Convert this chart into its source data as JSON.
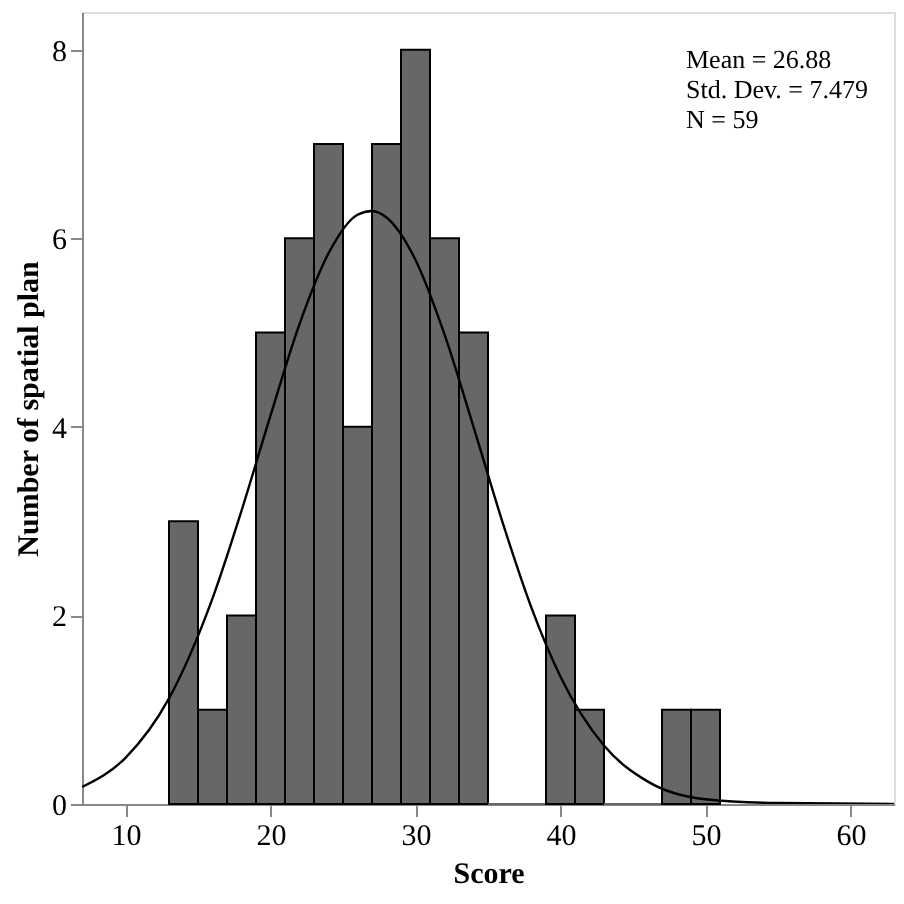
{
  "chart_data": {
    "type": "histogram",
    "xlabel": "Score",
    "ylabel": "Number of spatial plan",
    "bins": [
      13,
      15,
      17,
      19,
      21,
      23,
      25,
      27,
      29,
      31,
      33,
      35,
      37,
      39,
      41,
      43,
      45,
      47,
      49,
      51
    ],
    "values": [
      3,
      1,
      2,
      5,
      6,
      7,
      4,
      7,
      8,
      6,
      5,
      0,
      0,
      2,
      1,
      0,
      0,
      1,
      1
    ],
    "color": "#676767",
    "series": [
      {
        "type": "line",
        "color": "#000000",
        "x": [
          7,
          10,
          13,
          16,
          18,
          20,
          22,
          24,
          26,
          27,
          28,
          30,
          32,
          34,
          36,
          38,
          40,
          43,
          46,
          50,
          55,
          63
        ],
        "values": [
          0.18,
          0.49,
          1.12,
          2.18,
          3.11,
          4.12,
          5.09,
          5.84,
          6.25,
          6.29,
          6.22,
          5.77,
          4.98,
          4.0,
          2.99,
          2.08,
          1.35,
          0.62,
          0.24,
          0.05,
          0.01,
          0.0
        ]
      }
    ],
    "xlim": [
      7,
      63
    ],
    "xticks": [
      10,
      20,
      30,
      40,
      50,
      60
    ],
    "ylim": [
      0,
      8.4
    ],
    "yticks": [
      0,
      2,
      4,
      6,
      8
    ],
    "grid": false,
    "annotations": [
      "Mean = 26.88",
      "Std. Dev. = 7.479",
      "N = 59"
    ]
  }
}
